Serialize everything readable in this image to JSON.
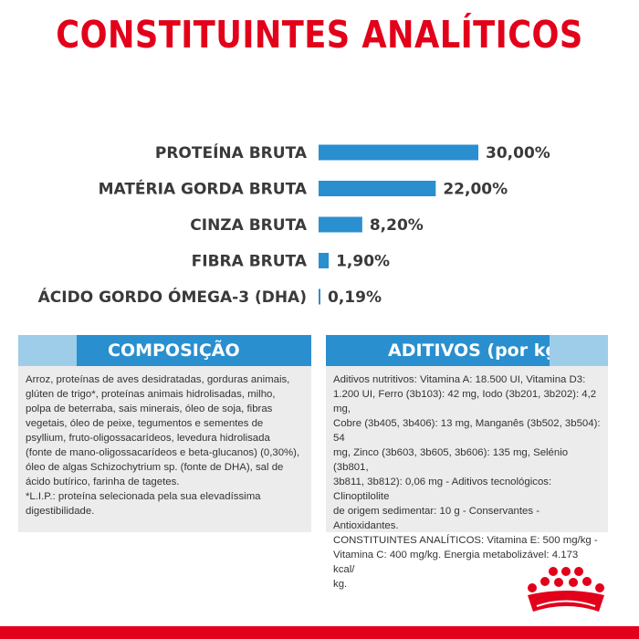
{
  "title": "CONSTITUINTES ANALÍTICOS",
  "chart_data": {
    "type": "bar",
    "orientation": "horizontal",
    "categories": [
      "PROTEÍNA BRUTA",
      "MATÉRIA GORDA BRUTA",
      "CINZA BRUTA",
      "FIBRA BRUTA",
      "ÁCIDO GORDO ÓMEGA-3 (DHA)"
    ],
    "values": [
      30.0,
      22.0,
      8.2,
      1.9,
      0.19
    ],
    "value_labels": [
      "30,00%",
      "22,00%",
      "8,20%",
      "1,90%",
      "0,19%"
    ],
    "xlim": [
      0,
      30
    ],
    "bar_color": "#2a8fcf",
    "grid": false
  },
  "composition": {
    "heading": "COMPOSIÇÃO",
    "text": "Arroz, proteínas de aves desidratadas, gorduras animais,\nglúten de trigo*, proteínas animais hidrolisadas, milho,\npolpa de beterraba, sais minerais, óleo de soja, fibras\nvegetais, óleo de peixe, tegumentos e sementes de\npsyllium, fruto-oligossacarídeos, levedura hidrolisada\n(fonte de mano-oligossacarídeos e beta-glucanos) (0,30%),\nóleo de algas Schizochytrium sp. (fonte de DHA), sal de\nácido butírico, farinha de tagetes.\n*L.I.P.: proteína selecionada pela sua elevadíssima\ndigestibilidade."
  },
  "additives": {
    "heading": "ADITIVOS (por kg)",
    "text": "Aditivos nutritivos: Vitamina A: 18.500 UI, Vitamina D3:\n1.200 UI, Ferro (3b103): 42 mg, Iodo (3b201, 3b202): 4,2 mg,\nCobre (3b405, 3b406): 13 mg, Manganês (3b502, 3b504): 54\nmg, Zinco (3b603, 3b605, 3b606): 135 mg, Selénio (3b801,\n3b811, 3b812): 0,06 mg - Aditivos tecnológicos: Clinoptilolite\nde origem sedimentar: 10 g - Conservantes - Antioxidantes.\nCONSTITUINTES ANALÍTICOS: Vitamina E: 500 mg/kg -\nVitamina C: 400 mg/kg. Energia metabolizável: 4.173 kcal/\nkg."
  },
  "colors": {
    "title": "#e2001a",
    "bar": "#2a8fcf",
    "tab": "#2a8fcf",
    "tab_accent": "#9dcde9",
    "panel": "#ececec",
    "brand_red": "#e2001a"
  },
  "logo": {
    "icon": "crown-icon"
  }
}
